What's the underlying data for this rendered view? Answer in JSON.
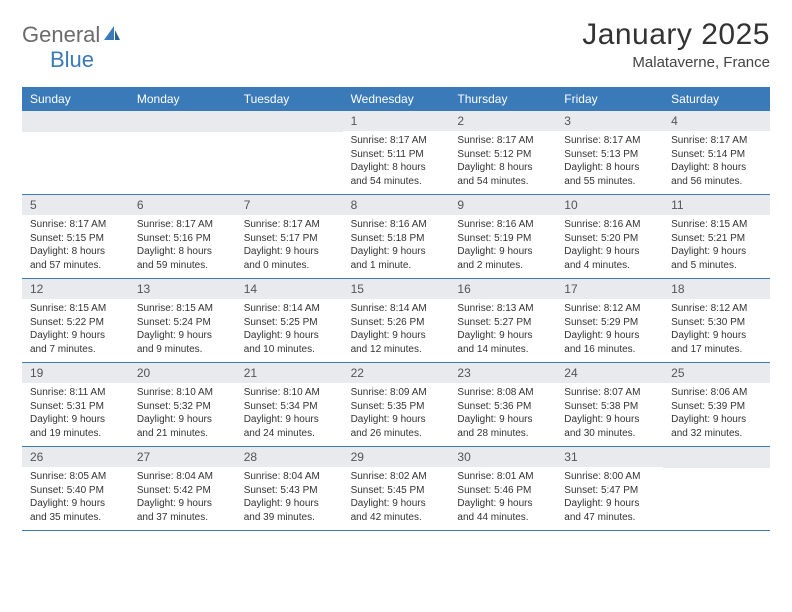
{
  "logo": {
    "text_part1": "General",
    "text_part2": "Blue",
    "text_color": "#6b6b6b",
    "accent_color": "#3a7ab8"
  },
  "header": {
    "month_title": "January 2025",
    "location": "Malataverne, France",
    "title_fontsize": 30,
    "location_fontsize": 15
  },
  "calendar": {
    "header_bg": "#3a7ab8",
    "header_text_color": "#ffffff",
    "daynum_bg": "#e8eaed",
    "border_color": "#3a7ab8",
    "day_labels": [
      "Sunday",
      "Monday",
      "Tuesday",
      "Wednesday",
      "Thursday",
      "Friday",
      "Saturday"
    ],
    "weeks": [
      [
        {
          "num": "",
          "sunrise": "",
          "sunset": "",
          "daylight": ""
        },
        {
          "num": "",
          "sunrise": "",
          "sunset": "",
          "daylight": ""
        },
        {
          "num": "",
          "sunrise": "",
          "sunset": "",
          "daylight": ""
        },
        {
          "num": "1",
          "sunrise": "Sunrise: 8:17 AM",
          "sunset": "Sunset: 5:11 PM",
          "daylight": "Daylight: 8 hours and 54 minutes."
        },
        {
          "num": "2",
          "sunrise": "Sunrise: 8:17 AM",
          "sunset": "Sunset: 5:12 PM",
          "daylight": "Daylight: 8 hours and 54 minutes."
        },
        {
          "num": "3",
          "sunrise": "Sunrise: 8:17 AM",
          "sunset": "Sunset: 5:13 PM",
          "daylight": "Daylight: 8 hours and 55 minutes."
        },
        {
          "num": "4",
          "sunrise": "Sunrise: 8:17 AM",
          "sunset": "Sunset: 5:14 PM",
          "daylight": "Daylight: 8 hours and 56 minutes."
        }
      ],
      [
        {
          "num": "5",
          "sunrise": "Sunrise: 8:17 AM",
          "sunset": "Sunset: 5:15 PM",
          "daylight": "Daylight: 8 hours and 57 minutes."
        },
        {
          "num": "6",
          "sunrise": "Sunrise: 8:17 AM",
          "sunset": "Sunset: 5:16 PM",
          "daylight": "Daylight: 8 hours and 59 minutes."
        },
        {
          "num": "7",
          "sunrise": "Sunrise: 8:17 AM",
          "sunset": "Sunset: 5:17 PM",
          "daylight": "Daylight: 9 hours and 0 minutes."
        },
        {
          "num": "8",
          "sunrise": "Sunrise: 8:16 AM",
          "sunset": "Sunset: 5:18 PM",
          "daylight": "Daylight: 9 hours and 1 minute."
        },
        {
          "num": "9",
          "sunrise": "Sunrise: 8:16 AM",
          "sunset": "Sunset: 5:19 PM",
          "daylight": "Daylight: 9 hours and 2 minutes."
        },
        {
          "num": "10",
          "sunrise": "Sunrise: 8:16 AM",
          "sunset": "Sunset: 5:20 PM",
          "daylight": "Daylight: 9 hours and 4 minutes."
        },
        {
          "num": "11",
          "sunrise": "Sunrise: 8:15 AM",
          "sunset": "Sunset: 5:21 PM",
          "daylight": "Daylight: 9 hours and 5 minutes."
        }
      ],
      [
        {
          "num": "12",
          "sunrise": "Sunrise: 8:15 AM",
          "sunset": "Sunset: 5:22 PM",
          "daylight": "Daylight: 9 hours and 7 minutes."
        },
        {
          "num": "13",
          "sunrise": "Sunrise: 8:15 AM",
          "sunset": "Sunset: 5:24 PM",
          "daylight": "Daylight: 9 hours and 9 minutes."
        },
        {
          "num": "14",
          "sunrise": "Sunrise: 8:14 AM",
          "sunset": "Sunset: 5:25 PM",
          "daylight": "Daylight: 9 hours and 10 minutes."
        },
        {
          "num": "15",
          "sunrise": "Sunrise: 8:14 AM",
          "sunset": "Sunset: 5:26 PM",
          "daylight": "Daylight: 9 hours and 12 minutes."
        },
        {
          "num": "16",
          "sunrise": "Sunrise: 8:13 AM",
          "sunset": "Sunset: 5:27 PM",
          "daylight": "Daylight: 9 hours and 14 minutes."
        },
        {
          "num": "17",
          "sunrise": "Sunrise: 8:12 AM",
          "sunset": "Sunset: 5:29 PM",
          "daylight": "Daylight: 9 hours and 16 minutes."
        },
        {
          "num": "18",
          "sunrise": "Sunrise: 8:12 AM",
          "sunset": "Sunset: 5:30 PM",
          "daylight": "Daylight: 9 hours and 17 minutes."
        }
      ],
      [
        {
          "num": "19",
          "sunrise": "Sunrise: 8:11 AM",
          "sunset": "Sunset: 5:31 PM",
          "daylight": "Daylight: 9 hours and 19 minutes."
        },
        {
          "num": "20",
          "sunrise": "Sunrise: 8:10 AM",
          "sunset": "Sunset: 5:32 PM",
          "daylight": "Daylight: 9 hours and 21 minutes."
        },
        {
          "num": "21",
          "sunrise": "Sunrise: 8:10 AM",
          "sunset": "Sunset: 5:34 PM",
          "daylight": "Daylight: 9 hours and 24 minutes."
        },
        {
          "num": "22",
          "sunrise": "Sunrise: 8:09 AM",
          "sunset": "Sunset: 5:35 PM",
          "daylight": "Daylight: 9 hours and 26 minutes."
        },
        {
          "num": "23",
          "sunrise": "Sunrise: 8:08 AM",
          "sunset": "Sunset: 5:36 PM",
          "daylight": "Daylight: 9 hours and 28 minutes."
        },
        {
          "num": "24",
          "sunrise": "Sunrise: 8:07 AM",
          "sunset": "Sunset: 5:38 PM",
          "daylight": "Daylight: 9 hours and 30 minutes."
        },
        {
          "num": "25",
          "sunrise": "Sunrise: 8:06 AM",
          "sunset": "Sunset: 5:39 PM",
          "daylight": "Daylight: 9 hours and 32 minutes."
        }
      ],
      [
        {
          "num": "26",
          "sunrise": "Sunrise: 8:05 AM",
          "sunset": "Sunset: 5:40 PM",
          "daylight": "Daylight: 9 hours and 35 minutes."
        },
        {
          "num": "27",
          "sunrise": "Sunrise: 8:04 AM",
          "sunset": "Sunset: 5:42 PM",
          "daylight": "Daylight: 9 hours and 37 minutes."
        },
        {
          "num": "28",
          "sunrise": "Sunrise: 8:04 AM",
          "sunset": "Sunset: 5:43 PM",
          "daylight": "Daylight: 9 hours and 39 minutes."
        },
        {
          "num": "29",
          "sunrise": "Sunrise: 8:02 AM",
          "sunset": "Sunset: 5:45 PM",
          "daylight": "Daylight: 9 hours and 42 minutes."
        },
        {
          "num": "30",
          "sunrise": "Sunrise: 8:01 AM",
          "sunset": "Sunset: 5:46 PM",
          "daylight": "Daylight: 9 hours and 44 minutes."
        },
        {
          "num": "31",
          "sunrise": "Sunrise: 8:00 AM",
          "sunset": "Sunset: 5:47 PM",
          "daylight": "Daylight: 9 hours and 47 minutes."
        },
        {
          "num": "",
          "sunrise": "",
          "sunset": "",
          "daylight": ""
        }
      ]
    ]
  }
}
